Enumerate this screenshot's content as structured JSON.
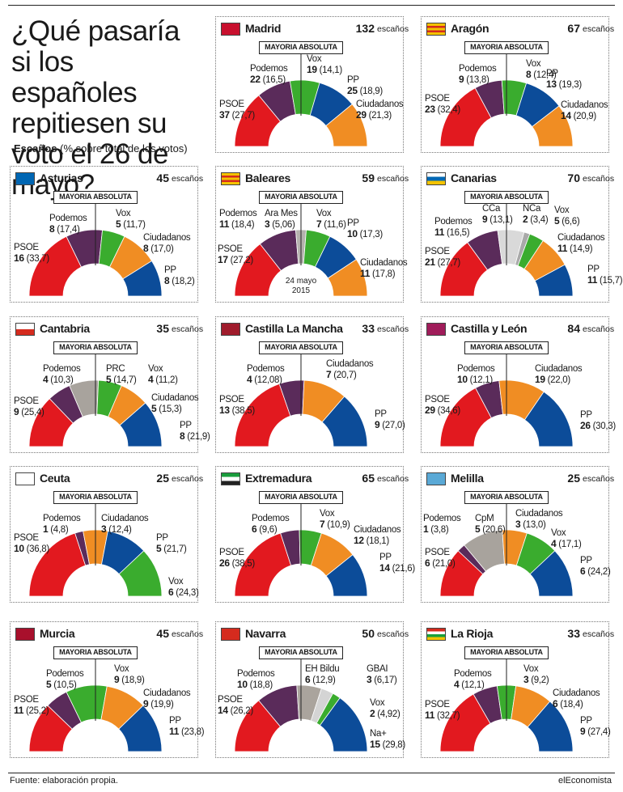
{
  "title": "¿Qué pasaría si los españoles repitiesen su voto el 26 de mayo?",
  "subtitle_bold": "Escaños",
  "subtitle_rest": "(% sobre total de los votos)",
  "majority_label": "MAYORIA ABSOLUTA",
  "seats_word": "escaños",
  "footer_source": "Fuente: elaboración propia.",
  "footer_brand": "elEconomista",
  "colors": {
    "PSOE": "#e2191f",
    "Podemos": "#5a2b5a",
    "Vox": "#3aac2e",
    "PP": "#0c4c99",
    "Ciudadanos": "#f08d23",
    "Ara Mes": "#b5b2ae",
    "CCa": "#d9d9d9",
    "NCa": "#a9a9a9",
    "PRC": "#a8a39d",
    "CpM": "#a8a39d",
    "EH Bildu": "#aaa49d",
    "GBAI": "#d4d4d4",
    "Na+": "#0c4c99"
  },
  "chart_data": [
    {
      "type": "donut",
      "region": "Madrid",
      "total": 132,
      "parties": [
        {
          "name": "PSOE",
          "seats": 37,
          "pct": "27,7"
        },
        {
          "name": "Podemos",
          "seats": 22,
          "pct": "16,5"
        },
        {
          "name": "Vox",
          "seats": 19,
          "pct": "14,1"
        },
        {
          "name": "PP",
          "seats": 25,
          "pct": "18,9"
        },
        {
          "name": "Ciudadanos",
          "seats": 29,
          "pct": "21,3"
        }
      ]
    },
    {
      "type": "donut",
      "region": "Aragón",
      "total": 67,
      "parties": [
        {
          "name": "PSOE",
          "seats": 23,
          "pct": "32,4"
        },
        {
          "name": "Podemos",
          "seats": 9,
          "pct": "13,8"
        },
        {
          "name": "Vox",
          "seats": 8,
          "pct": "12,4"
        },
        {
          "name": "PP",
          "seats": 13,
          "pct": "19,3"
        },
        {
          "name": "Ciudadanos",
          "seats": 14,
          "pct": "20,9"
        }
      ]
    },
    {
      "type": "donut",
      "region": "Asturias",
      "total": 45,
      "parties": [
        {
          "name": "PSOE",
          "seats": 16,
          "pct": "33,7"
        },
        {
          "name": "Podemos",
          "seats": 8,
          "pct": "17,4"
        },
        {
          "name": "Vox",
          "seats": 5,
          "pct": "11,7"
        },
        {
          "name": "Ciudadanos",
          "seats": 8,
          "pct": "17,0"
        },
        {
          "name": "PP",
          "seats": 8,
          "pct": "18,2"
        }
      ]
    },
    {
      "type": "donut",
      "region": "Baleares",
      "total": 59,
      "note": "24 mayo 2015",
      "parties": [
        {
          "name": "PSOE",
          "seats": 17,
          "pct": "27,2"
        },
        {
          "name": "Podemos",
          "seats": 11,
          "pct": "18,4"
        },
        {
          "name": "Ara Mes",
          "seats": 3,
          "pct": "5,06"
        },
        {
          "name": "Vox",
          "seats": 7,
          "pct": "11,6"
        },
        {
          "name": "PP",
          "seats": 10,
          "pct": "17,3"
        },
        {
          "name": "Ciudadanos",
          "seats": 11,
          "pct": "17,8"
        }
      ]
    },
    {
      "type": "donut",
      "region": "Canarias",
      "total": 70,
      "parties": [
        {
          "name": "PSOE",
          "seats": 21,
          "pct": "27,7"
        },
        {
          "name": "Podemos",
          "seats": 11,
          "pct": "16,5"
        },
        {
          "name": "CCa",
          "seats": 9,
          "pct": "13,1"
        },
        {
          "name": "NCa",
          "seats": 2,
          "pct": "3,4"
        },
        {
          "name": "Vox",
          "seats": 5,
          "pct": "6,6"
        },
        {
          "name": "Ciudadanos",
          "seats": 11,
          "pct": "14,9"
        },
        {
          "name": "PP",
          "seats": 11,
          "pct": "15,7"
        }
      ]
    },
    {
      "type": "donut",
      "region": "Cantabria",
      "total": 35,
      "parties": [
        {
          "name": "PSOE",
          "seats": 9,
          "pct": "25,4"
        },
        {
          "name": "Podemos",
          "seats": 4,
          "pct": "10,3"
        },
        {
          "name": "PRC",
          "seats": 5,
          "pct": "14,7"
        },
        {
          "name": "Vox",
          "seats": 4,
          "pct": "11,2"
        },
        {
          "name": "Ciudadanos",
          "seats": 5,
          "pct": "15,3"
        },
        {
          "name": "PP",
          "seats": 8,
          "pct": "21,9"
        }
      ]
    },
    {
      "type": "donut",
      "region": "Castilla La Mancha",
      "total": 33,
      "parties": [
        {
          "name": "PSOE",
          "seats": 13,
          "pct": "38,5"
        },
        {
          "name": "Podemos",
          "seats": 4,
          "pct": "12,08"
        },
        {
          "name": "Ciudadanos",
          "seats": 7,
          "pct": "20,7"
        },
        {
          "name": "PP",
          "seats": 9,
          "pct": "27,0"
        }
      ]
    },
    {
      "type": "donut",
      "region": "Castilla y León",
      "total": 84,
      "parties": [
        {
          "name": "PSOE",
          "seats": 29,
          "pct": "34,6"
        },
        {
          "name": "Podemos",
          "seats": 10,
          "pct": "12,1"
        },
        {
          "name": "Ciudadanos",
          "seats": 19,
          "pct": "22,0"
        },
        {
          "name": "PP",
          "seats": 26,
          "pct": "30,3"
        }
      ]
    },
    {
      "type": "donut",
      "region": "Ceuta",
      "total": 25,
      "parties": [
        {
          "name": "PSOE",
          "seats": 10,
          "pct": "36,8"
        },
        {
          "name": "Podemos",
          "seats": 1,
          "pct": "4,8"
        },
        {
          "name": "Ciudadanos",
          "seats": 3,
          "pct": "12,4"
        },
        {
          "name": "PP",
          "seats": 5,
          "pct": "21,7"
        },
        {
          "name": "Vox",
          "seats": 6,
          "pct": "24,3"
        }
      ]
    },
    {
      "type": "donut",
      "region": "Extremadura",
      "total": 65,
      "parties": [
        {
          "name": "PSOE",
          "seats": 26,
          "pct": "38,5"
        },
        {
          "name": "Podemos",
          "seats": 6,
          "pct": "9,6"
        },
        {
          "name": "Vox",
          "seats": 7,
          "pct": "10,9"
        },
        {
          "name": "Ciudadanos",
          "seats": 12,
          "pct": "18,1"
        },
        {
          "name": "PP",
          "seats": 14,
          "pct": "21,6"
        }
      ]
    },
    {
      "type": "donut",
      "region": "Melilla",
      "total": 25,
      "parties": [
        {
          "name": "PSOE",
          "seats": 6,
          "pct": "21,0"
        },
        {
          "name": "Podemos",
          "seats": 1,
          "pct": "3,8"
        },
        {
          "name": "CpM",
          "seats": 5,
          "pct": "20,6"
        },
        {
          "name": "Ciudadanos",
          "seats": 3,
          "pct": "13,0"
        },
        {
          "name": "Vox",
          "seats": 4,
          "pct": "17,1"
        },
        {
          "name": "PP",
          "seats": 6,
          "pct": "24,2"
        }
      ]
    },
    {
      "type": "donut",
      "region": "Murcia",
      "total": 45,
      "parties": [
        {
          "name": "PSOE",
          "seats": 11,
          "pct": "25,2"
        },
        {
          "name": "Podemos",
          "seats": 5,
          "pct": "10,5"
        },
        {
          "name": "Vox",
          "seats": 9,
          "pct": "18,9"
        },
        {
          "name": "Ciudadanos",
          "seats": 9,
          "pct": "19,9"
        },
        {
          "name": "PP",
          "seats": 11,
          "pct": "23,8"
        }
      ]
    },
    {
      "type": "donut",
      "region": "Navarra",
      "total": 50,
      "parties": [
        {
          "name": "PSOE",
          "seats": 14,
          "pct": "26,2"
        },
        {
          "name": "Podemos",
          "seats": 10,
          "pct": "18,8"
        },
        {
          "name": "EH Bildu",
          "seats": 6,
          "pct": "12,9"
        },
        {
          "name": "GBAI",
          "seats": 3,
          "pct": "6,17"
        },
        {
          "name": "Vox",
          "seats": 2,
          "pct": "4,92"
        },
        {
          "name": "Na+",
          "seats": 15,
          "pct": "29,8"
        }
      ]
    },
    {
      "type": "donut",
      "region": "La Rioja",
      "total": 33,
      "parties": [
        {
          "name": "PSOE",
          "seats": 11,
          "pct": "32,7"
        },
        {
          "name": "Podemos",
          "seats": 4,
          "pct": "12,1"
        },
        {
          "name": "Vox",
          "seats": 3,
          "pct": "9,2"
        },
        {
          "name": "Ciudadanos",
          "seats": 6,
          "pct": "18,4"
        },
        {
          "name": "PP",
          "seats": 9,
          "pct": "27,4"
        }
      ]
    }
  ]
}
